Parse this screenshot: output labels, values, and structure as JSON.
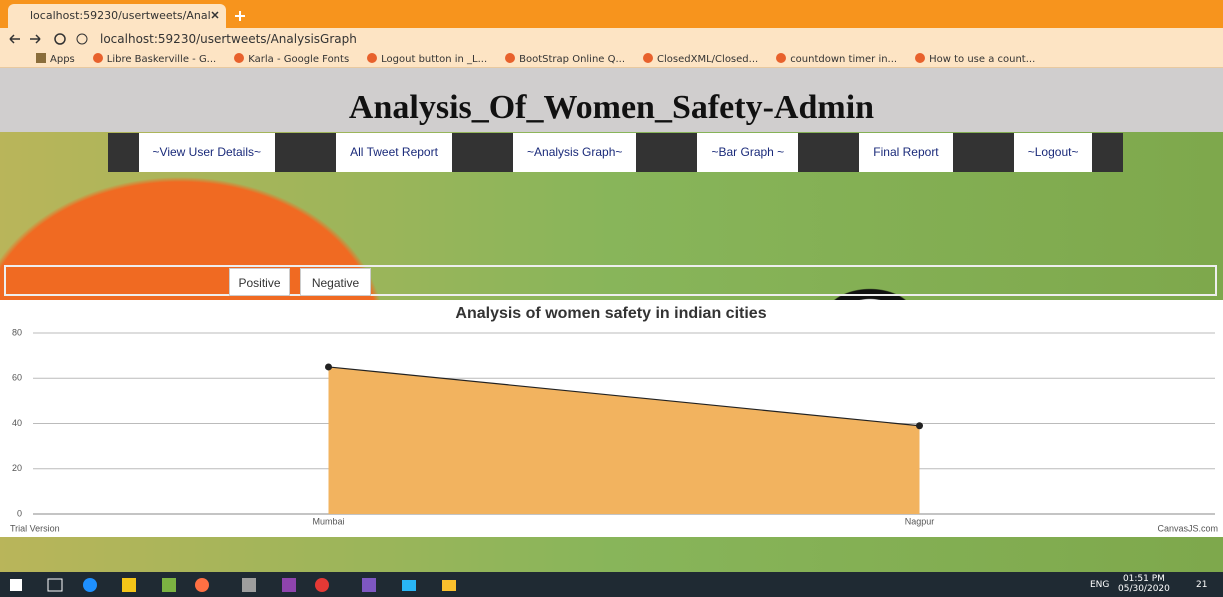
{
  "browser": {
    "tab_title": "localhost:59230/usertweets/Anal",
    "url": "localhost:59230/usertweets/AnalysisGraph",
    "bookmarks": [
      "Apps",
      "Libre Baskerville - G...",
      "Karla - Google Fonts",
      "Logout button in _L...",
      "BootStrap Online Q...",
      "ClosedXML/Closed...",
      "countdown timer in...",
      "How to use a count..."
    ]
  },
  "header": {
    "title": "Analysis_Of_Women_Safety-Admin"
  },
  "nav": [
    "~View User Details~",
    "All Tweet Report",
    "~Analysis Graph~",
    "~Bar Graph ~",
    "Final Report",
    "~Logout~"
  ],
  "tabs": [
    "Positive",
    "Negative"
  ],
  "chart_data": {
    "type": "area",
    "title": "Analysis of women safety in indian cities",
    "categories": [
      "Mumbai",
      "Nagpur"
    ],
    "values": [
      65,
      39
    ],
    "color": "#f2b35f",
    "line_color": "#222",
    "ylim": [
      0,
      80
    ],
    "yticks": [
      0,
      20,
      40,
      60,
      80
    ],
    "grid": true,
    "watermark": "Trial Version",
    "credit": "CanvasJS.com"
  },
  "taskbar": {
    "language": "ENG",
    "time": "01:51 PM",
    "date": "05/30/2020",
    "notifications": "21"
  }
}
